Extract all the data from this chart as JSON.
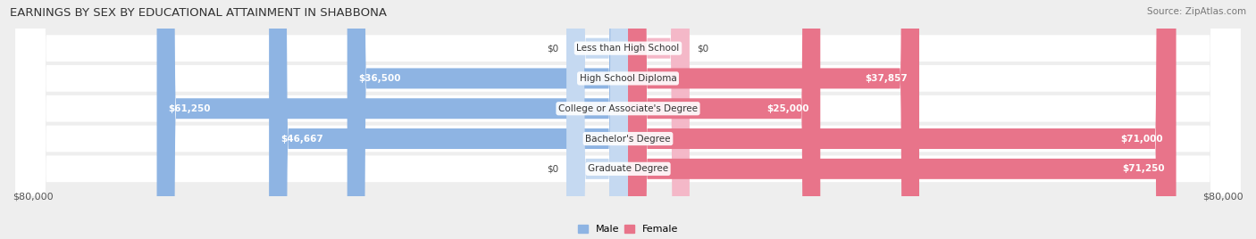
{
  "title": "EARNINGS BY SEX BY EDUCATIONAL ATTAINMENT IN SHABBONA",
  "source": "Source: ZipAtlas.com",
  "categories": [
    "Less than High School",
    "High School Diploma",
    "College or Associate's Degree",
    "Bachelor's Degree",
    "Graduate Degree"
  ],
  "male_values": [
    0,
    36500,
    61250,
    46667,
    0
  ],
  "female_values": [
    0,
    37857,
    25000,
    71000,
    71250
  ],
  "male_labels": [
    "$0",
    "$36,500",
    "$61,250",
    "$46,667",
    "$0"
  ],
  "female_labels": [
    "$0",
    "$37,857",
    "$25,000",
    "$71,000",
    "$71,250"
  ],
  "male_color": "#8eb4e3",
  "female_color": "#e8748a",
  "male_color_light": "#c5d9f1",
  "female_color_light": "#f4b8c8",
  "axis_max": 80000,
  "axis_label_left": "$80,000",
  "axis_label_right": "$80,000",
  "background_color": "#eeeeee",
  "zero_bar_width": 8000,
  "title_fontsize": 9.5,
  "source_fontsize": 7.5,
  "bar_label_fontsize": 7.5,
  "cat_label_fontsize": 7.5
}
